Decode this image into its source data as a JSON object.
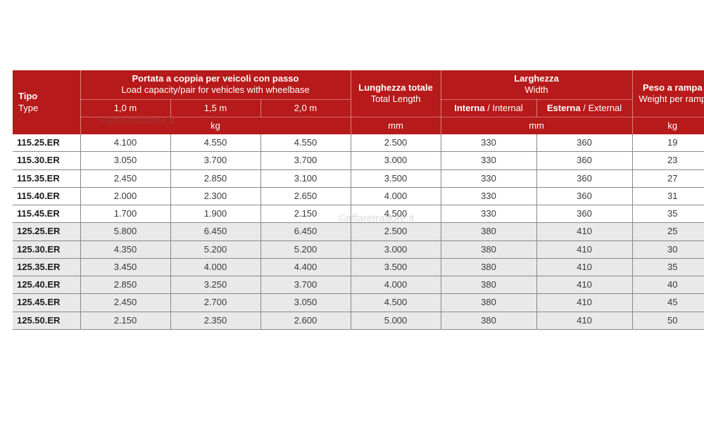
{
  "table": {
    "header_bg": "#b71a1a",
    "header_fg": "#ffffff",
    "border_color": "#888888",
    "shaded_bg": "#e9e9e9",
    "watermark_text": "©affaretrattore.it",
    "columns": {
      "type": {
        "title_it": "Tipo",
        "title_en": "Type"
      },
      "capacity": {
        "title_it": "Portata a coppia per veicoli con passo",
        "title_en": "Load capacity/pair for vehicles with wheelbase",
        "sub": [
          "1,0 m",
          "1,5 m",
          "2,0 m"
        ],
        "unit": "kg"
      },
      "length": {
        "title_it": "Lunghezza totale",
        "title_en": "Total Length",
        "unit": "mm"
      },
      "width": {
        "title_it": "Larghezza",
        "title_en": "Width",
        "sub_it": [
          "Interna",
          "Esterna"
        ],
        "sub_en": [
          "Internal",
          "External"
        ],
        "unit": "mm"
      },
      "weight": {
        "title_it": "Peso a rampa",
        "title_en": "Weight per ramp",
        "unit": "kg"
      }
    },
    "rows": [
      {
        "type": "115.25.ER",
        "cap": [
          "4.100",
          "4.550",
          "4.550"
        ],
        "len": "2.500",
        "wi": [
          "330",
          "360"
        ],
        "wt": "19",
        "shaded": false
      },
      {
        "type": "115.30.ER",
        "cap": [
          "3.050",
          "3.700",
          "3.700"
        ],
        "len": "3.000",
        "wi": [
          "330",
          "360"
        ],
        "wt": "23",
        "shaded": false
      },
      {
        "type": "115.35.ER",
        "cap": [
          "2.450",
          "2.850",
          "3.100"
        ],
        "len": "3.500",
        "wi": [
          "330",
          "360"
        ],
        "wt": "27",
        "shaded": false
      },
      {
        "type": "115.40.ER",
        "cap": [
          "2.000",
          "2.300",
          "2.650"
        ],
        "len": "4.000",
        "wi": [
          "330",
          "360"
        ],
        "wt": "31",
        "shaded": false
      },
      {
        "type": "115.45.ER",
        "cap": [
          "1.700",
          "1.900",
          "2.150"
        ],
        "len": "4.500",
        "wi": [
          "330",
          "360"
        ],
        "wt": "35",
        "shaded": false
      },
      {
        "type": "125.25.ER",
        "cap": [
          "5.800",
          "6.450",
          "6.450"
        ],
        "len": "2.500",
        "wi": [
          "380",
          "410"
        ],
        "wt": "25",
        "shaded": true
      },
      {
        "type": "125.30.ER",
        "cap": [
          "4.350",
          "5.200",
          "5.200"
        ],
        "len": "3.000",
        "wi": [
          "380",
          "410"
        ],
        "wt": "30",
        "shaded": true
      },
      {
        "type": "125.35.ER",
        "cap": [
          "3.450",
          "4.000",
          "4.400"
        ],
        "len": "3.500",
        "wi": [
          "380",
          "410"
        ],
        "wt": "35",
        "shaded": true
      },
      {
        "type": "125.40.ER",
        "cap": [
          "2.850",
          "3.250",
          "3.700"
        ],
        "len": "4.000",
        "wi": [
          "380",
          "410"
        ],
        "wt": "40",
        "shaded": true
      },
      {
        "type": "125.45.ER",
        "cap": [
          "2.450",
          "2.700",
          "3.050"
        ],
        "len": "4.500",
        "wi": [
          "380",
          "410"
        ],
        "wt": "45",
        "shaded": true
      },
      {
        "type": "125.50.ER",
        "cap": [
          "2.150",
          "2.350",
          "2.600"
        ],
        "len": "5.000",
        "wi": [
          "380",
          "410"
        ],
        "wt": "50",
        "shaded": true
      }
    ]
  }
}
